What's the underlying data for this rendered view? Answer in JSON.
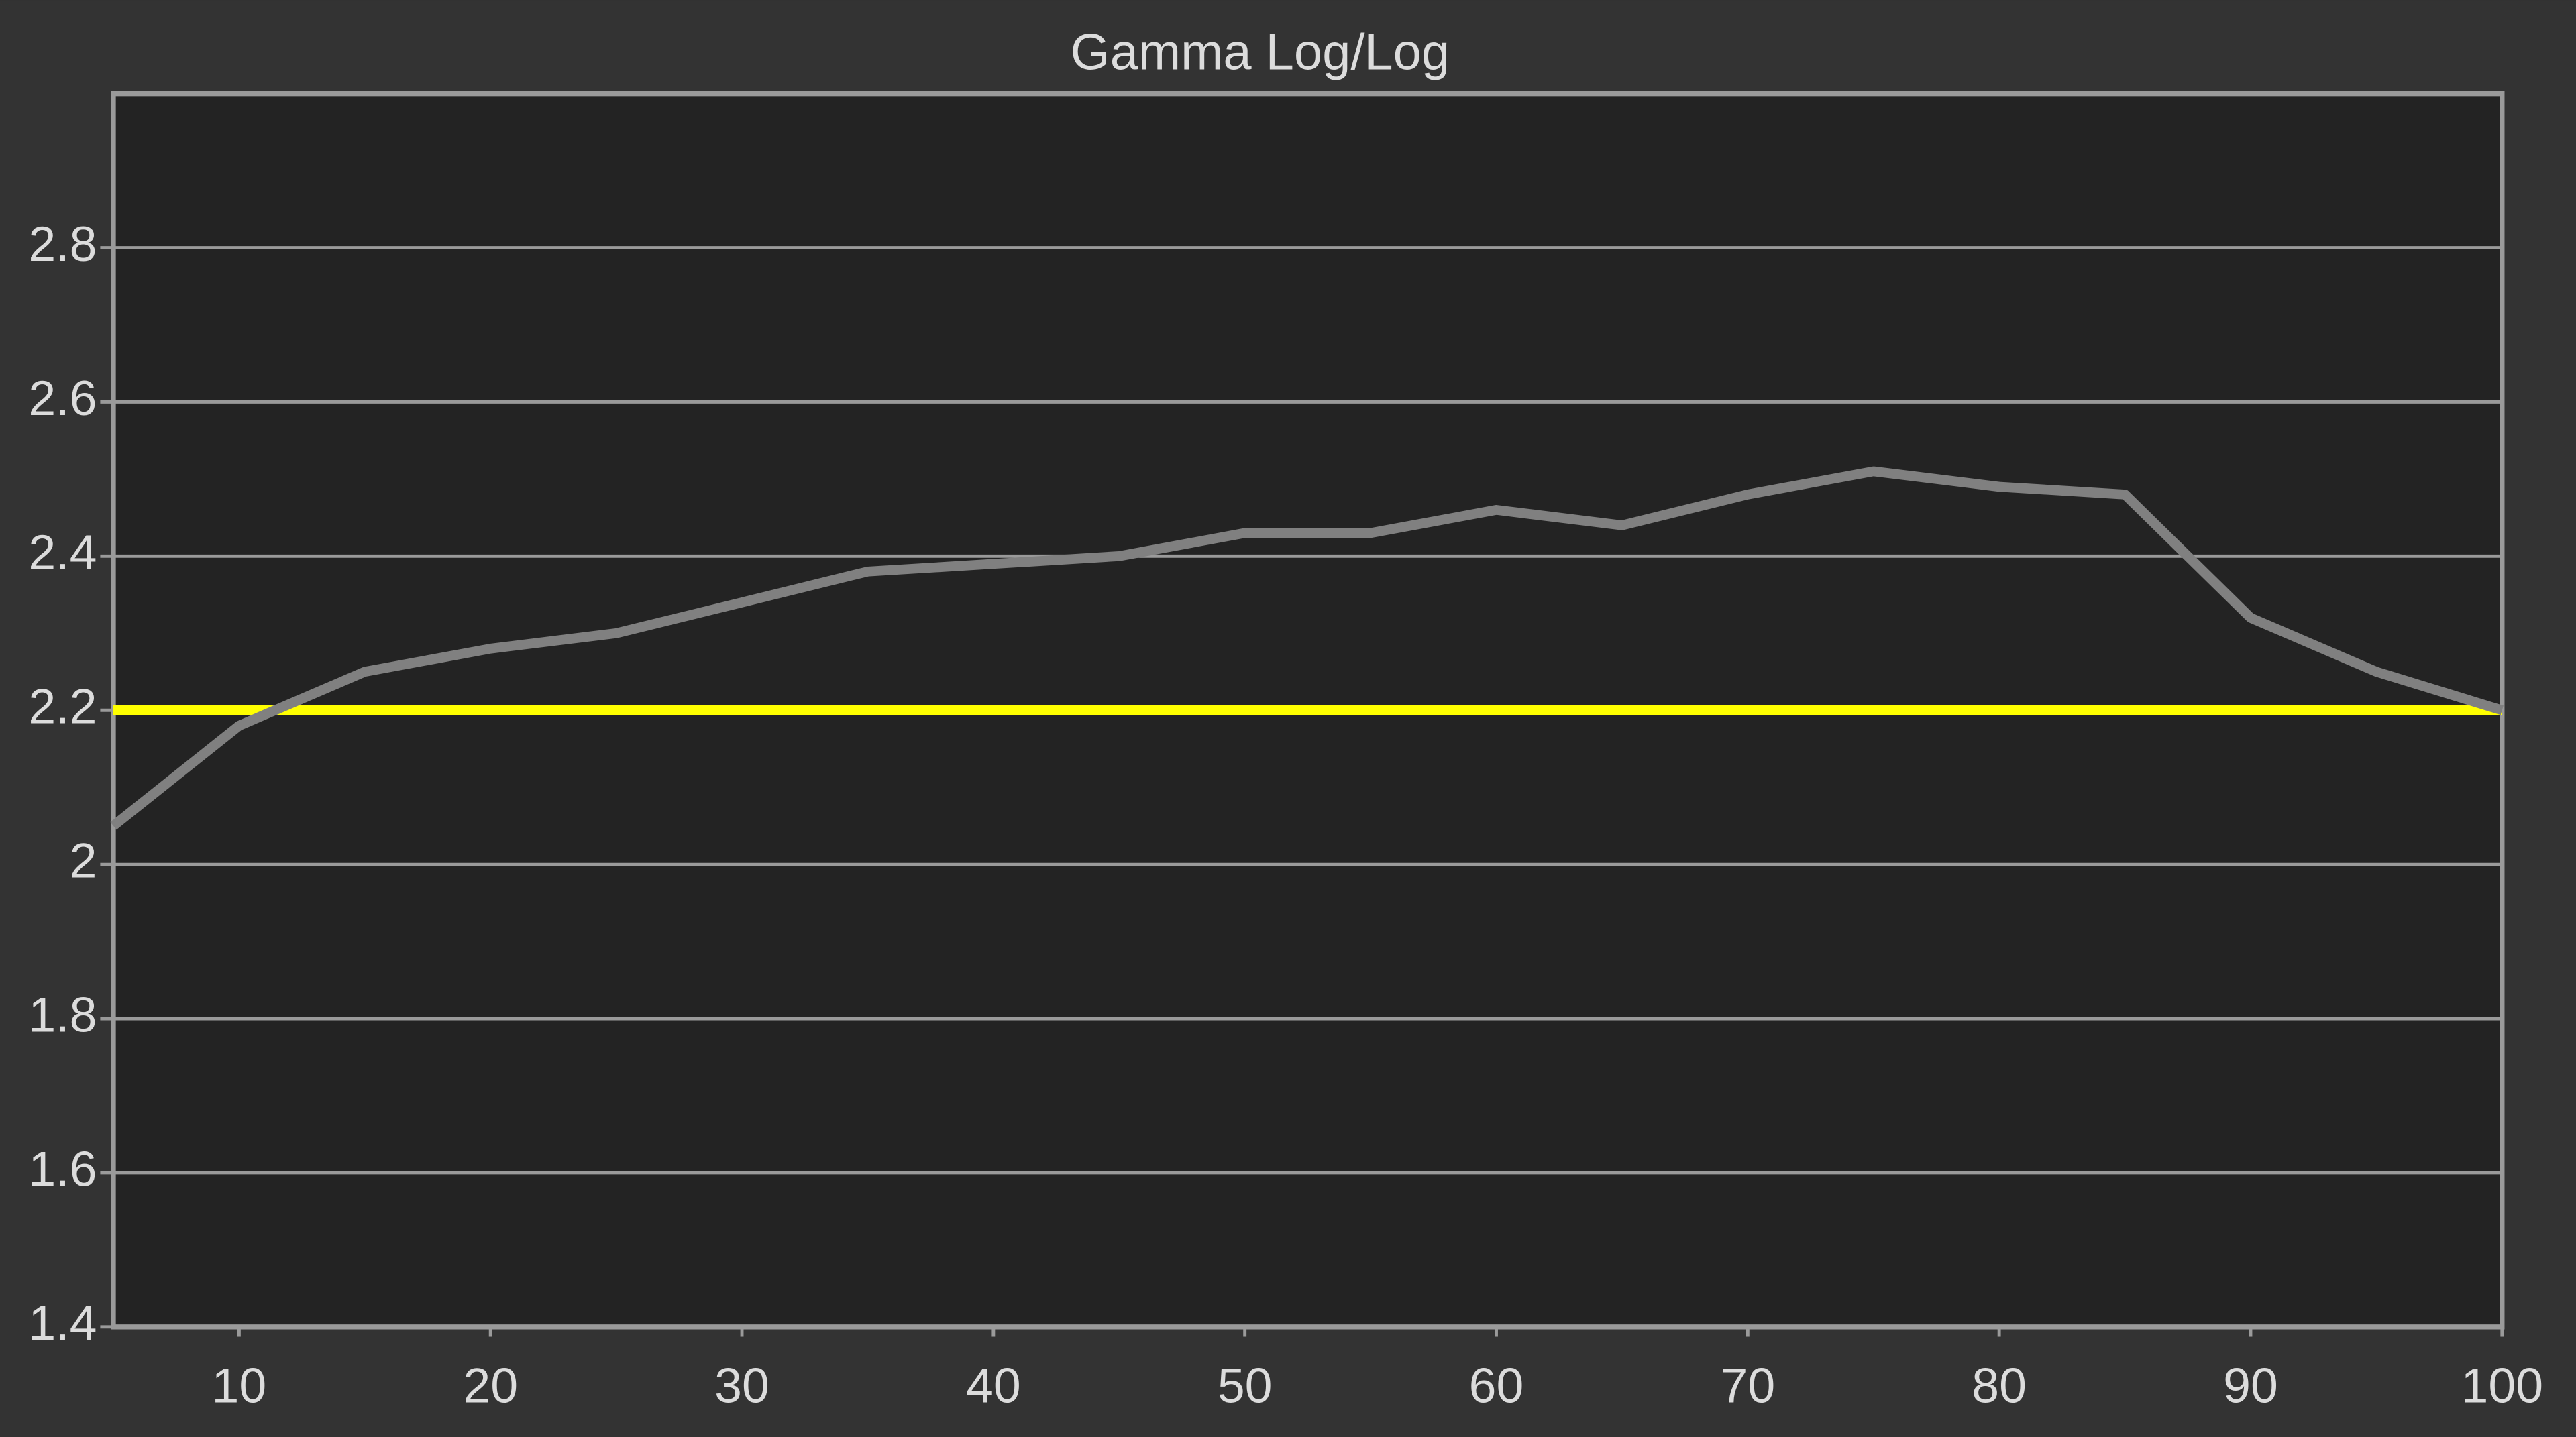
{
  "chart_data": {
    "type": "line",
    "title": "Gamma Log/Log",
    "x": [
      5,
      10,
      15,
      20,
      25,
      30,
      35,
      40,
      45,
      50,
      55,
      60,
      65,
      70,
      75,
      80,
      85,
      90,
      95,
      100
    ],
    "series": [
      {
        "color": "#ffff00",
        "values": [
          2.2,
          2.2,
          2.2,
          2.2,
          2.2,
          2.2,
          2.2,
          2.2,
          2.2,
          2.2,
          2.2,
          2.2,
          2.2,
          2.2,
          2.2,
          2.2,
          2.2,
          2.2,
          2.2,
          2.2
        ]
      },
      {
        "color": "#808080",
        "values": [
          2.05,
          2.18,
          2.25,
          2.28,
          2.3,
          2.34,
          2.38,
          2.39,
          2.4,
          2.43,
          2.43,
          2.46,
          2.44,
          2.48,
          2.51,
          2.49,
          2.48,
          2.32,
          2.25,
          2.2
        ]
      }
    ],
    "xlim": [
      5,
      100
    ],
    "xticks": [
      10,
      20,
      30,
      40,
      50,
      60,
      70,
      80,
      90,
      100
    ],
    "ylim": [
      1.4,
      3.0
    ],
    "yticks": [
      1.4,
      1.6,
      1.8,
      2,
      2.2,
      2.4,
      2.6,
      2.8
    ],
    "grid": true
  }
}
